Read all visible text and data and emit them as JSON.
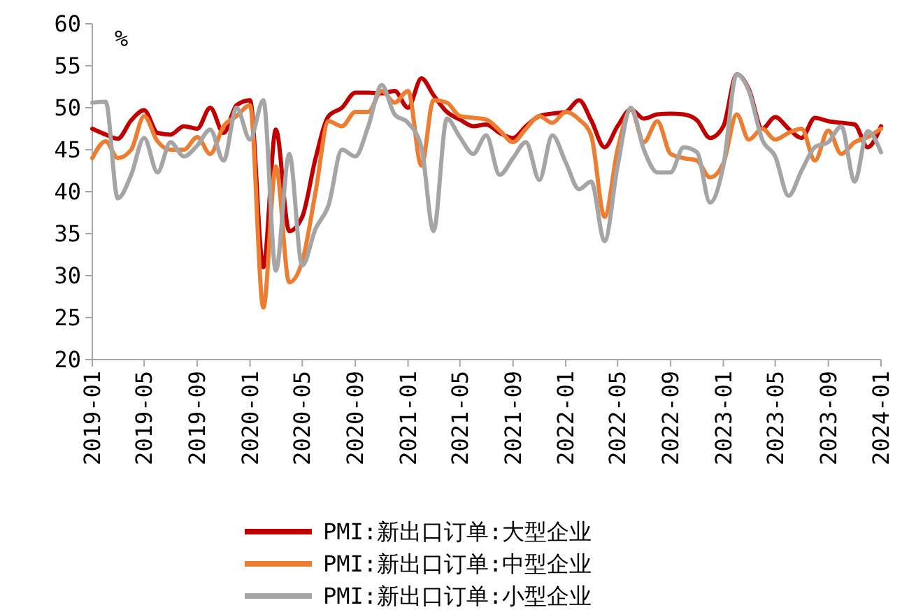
{
  "chart_data": {
    "type": "line",
    "ylabel": "%",
    "ylim": [
      20,
      60
    ],
    "yticks": [
      20,
      25,
      30,
      35,
      40,
      45,
      50,
      55,
      60
    ],
    "xlim": [
      "2019-01",
      "2024-01"
    ],
    "xticks": [
      "2019-01",
      "2019-05",
      "2019-09",
      "2020-01",
      "2020-05",
      "2020-09",
      "2021-01",
      "2021-05",
      "2021-09",
      "2022-01",
      "2022-05",
      "2022-09",
      "2023-01",
      "2023-05",
      "2023-09",
      "2024-01"
    ],
    "grid": false,
    "legend": "bottom",
    "marker": "none",
    "line_style": "solid",
    "x": [
      "2019-01",
      "2019-02",
      "2019-03",
      "2019-04",
      "2019-05",
      "2019-06",
      "2019-07",
      "2019-08",
      "2019-09",
      "2019-10",
      "2019-11",
      "2019-12",
      "2020-01",
      "2020-02",
      "2020-03",
      "2020-04",
      "2020-05",
      "2020-06",
      "2020-07",
      "2020-08",
      "2020-09",
      "2020-10",
      "2020-11",
      "2020-12",
      "2021-01",
      "2021-02",
      "2021-03",
      "2021-04",
      "2021-05",
      "2021-06",
      "2021-07",
      "2021-08",
      "2021-09",
      "2021-10",
      "2021-11",
      "2021-12",
      "2022-01",
      "2022-02",
      "2022-03",
      "2022-04",
      "2022-05",
      "2022-06",
      "2022-07",
      "2022-08",
      "2022-09",
      "2022-10",
      "2022-11",
      "2022-12",
      "2023-01",
      "2023-02",
      "2023-03",
      "2023-04",
      "2023-05",
      "2023-06",
      "2023-07",
      "2023-08",
      "2023-09",
      "2023-10",
      "2023-11",
      "2023-12",
      "2024-01"
    ],
    "series": [
      {
        "name": "PMI:新出口订单:大型企业",
        "color": "#c00000",
        "values": [
          47.5,
          46.8,
          46.3,
          48.5,
          49.7,
          47,
          46.8,
          47.8,
          47.5,
          50,
          47,
          50.3,
          50.9,
          31,
          47.4,
          35.3,
          37,
          44,
          49,
          50,
          51.8,
          51.8,
          51.7,
          52,
          50,
          53.5,
          51.5,
          49.5,
          48.6,
          47.8,
          48,
          47,
          46.4,
          47.8,
          49,
          49.3,
          49.5,
          50.9,
          48.5,
          45.3,
          47.8,
          49.8,
          48.7,
          49.2,
          49.3,
          49.2,
          48.5,
          46.4,
          47.8,
          54,
          52.2,
          47.5,
          48.9,
          47.5,
          46.4,
          48.8,
          48.4,
          48.2,
          48,
          45.3,
          47.8
        ]
      },
      {
        "name": "PMI:新出口订单:中型企业",
        "color": "#ed7d31",
        "values": [
          44,
          46,
          44,
          45,
          49,
          46,
          45,
          45,
          46.5,
          44.5,
          47.8,
          49,
          50.3,
          26.2,
          43,
          29.2,
          31.7,
          40,
          48.4,
          47.8,
          49.5,
          49.5,
          52,
          50.6,
          52,
          43.1,
          50.9,
          50.6,
          49,
          48.8,
          48.6,
          47.3,
          45.9,
          47.5,
          49,
          48.2,
          49.5,
          48.6,
          46.7,
          37,
          45,
          49.8,
          45.9,
          48.4,
          44.5,
          44,
          43.7,
          41.7,
          43.4,
          49.2,
          46.2,
          47.5,
          46.2,
          47,
          47.5,
          43.7,
          47.3,
          44.5,
          45.9,
          46.5,
          47.5
        ]
      },
      {
        "name": "PMI:新出口订单:小型企业",
        "color": "#a5a5a5",
        "values": [
          50.6,
          50.7,
          39.2,
          42,
          46.4,
          42.3,
          45.9,
          44.2,
          45.5,
          47.4,
          43.7,
          50,
          46.2,
          50.9,
          30.6,
          44.5,
          31.2,
          35.6,
          38.4,
          45,
          44.2,
          47.8,
          52.7,
          49.2,
          48.2,
          45.3,
          35.3,
          48.7,
          46.5,
          44.5,
          46.7,
          42,
          44,
          45.9,
          41.4,
          46.7,
          43.5,
          40.3,
          41.2,
          34.1,
          43,
          50,
          45,
          42.3,
          42.3,
          45.3,
          44.7,
          38.7,
          43.1,
          54,
          52,
          46.2,
          44.2,
          39.5,
          42.5,
          45.3,
          45.9,
          47.8,
          41.2,
          47.2,
          44.7
        ]
      }
    ]
  }
}
